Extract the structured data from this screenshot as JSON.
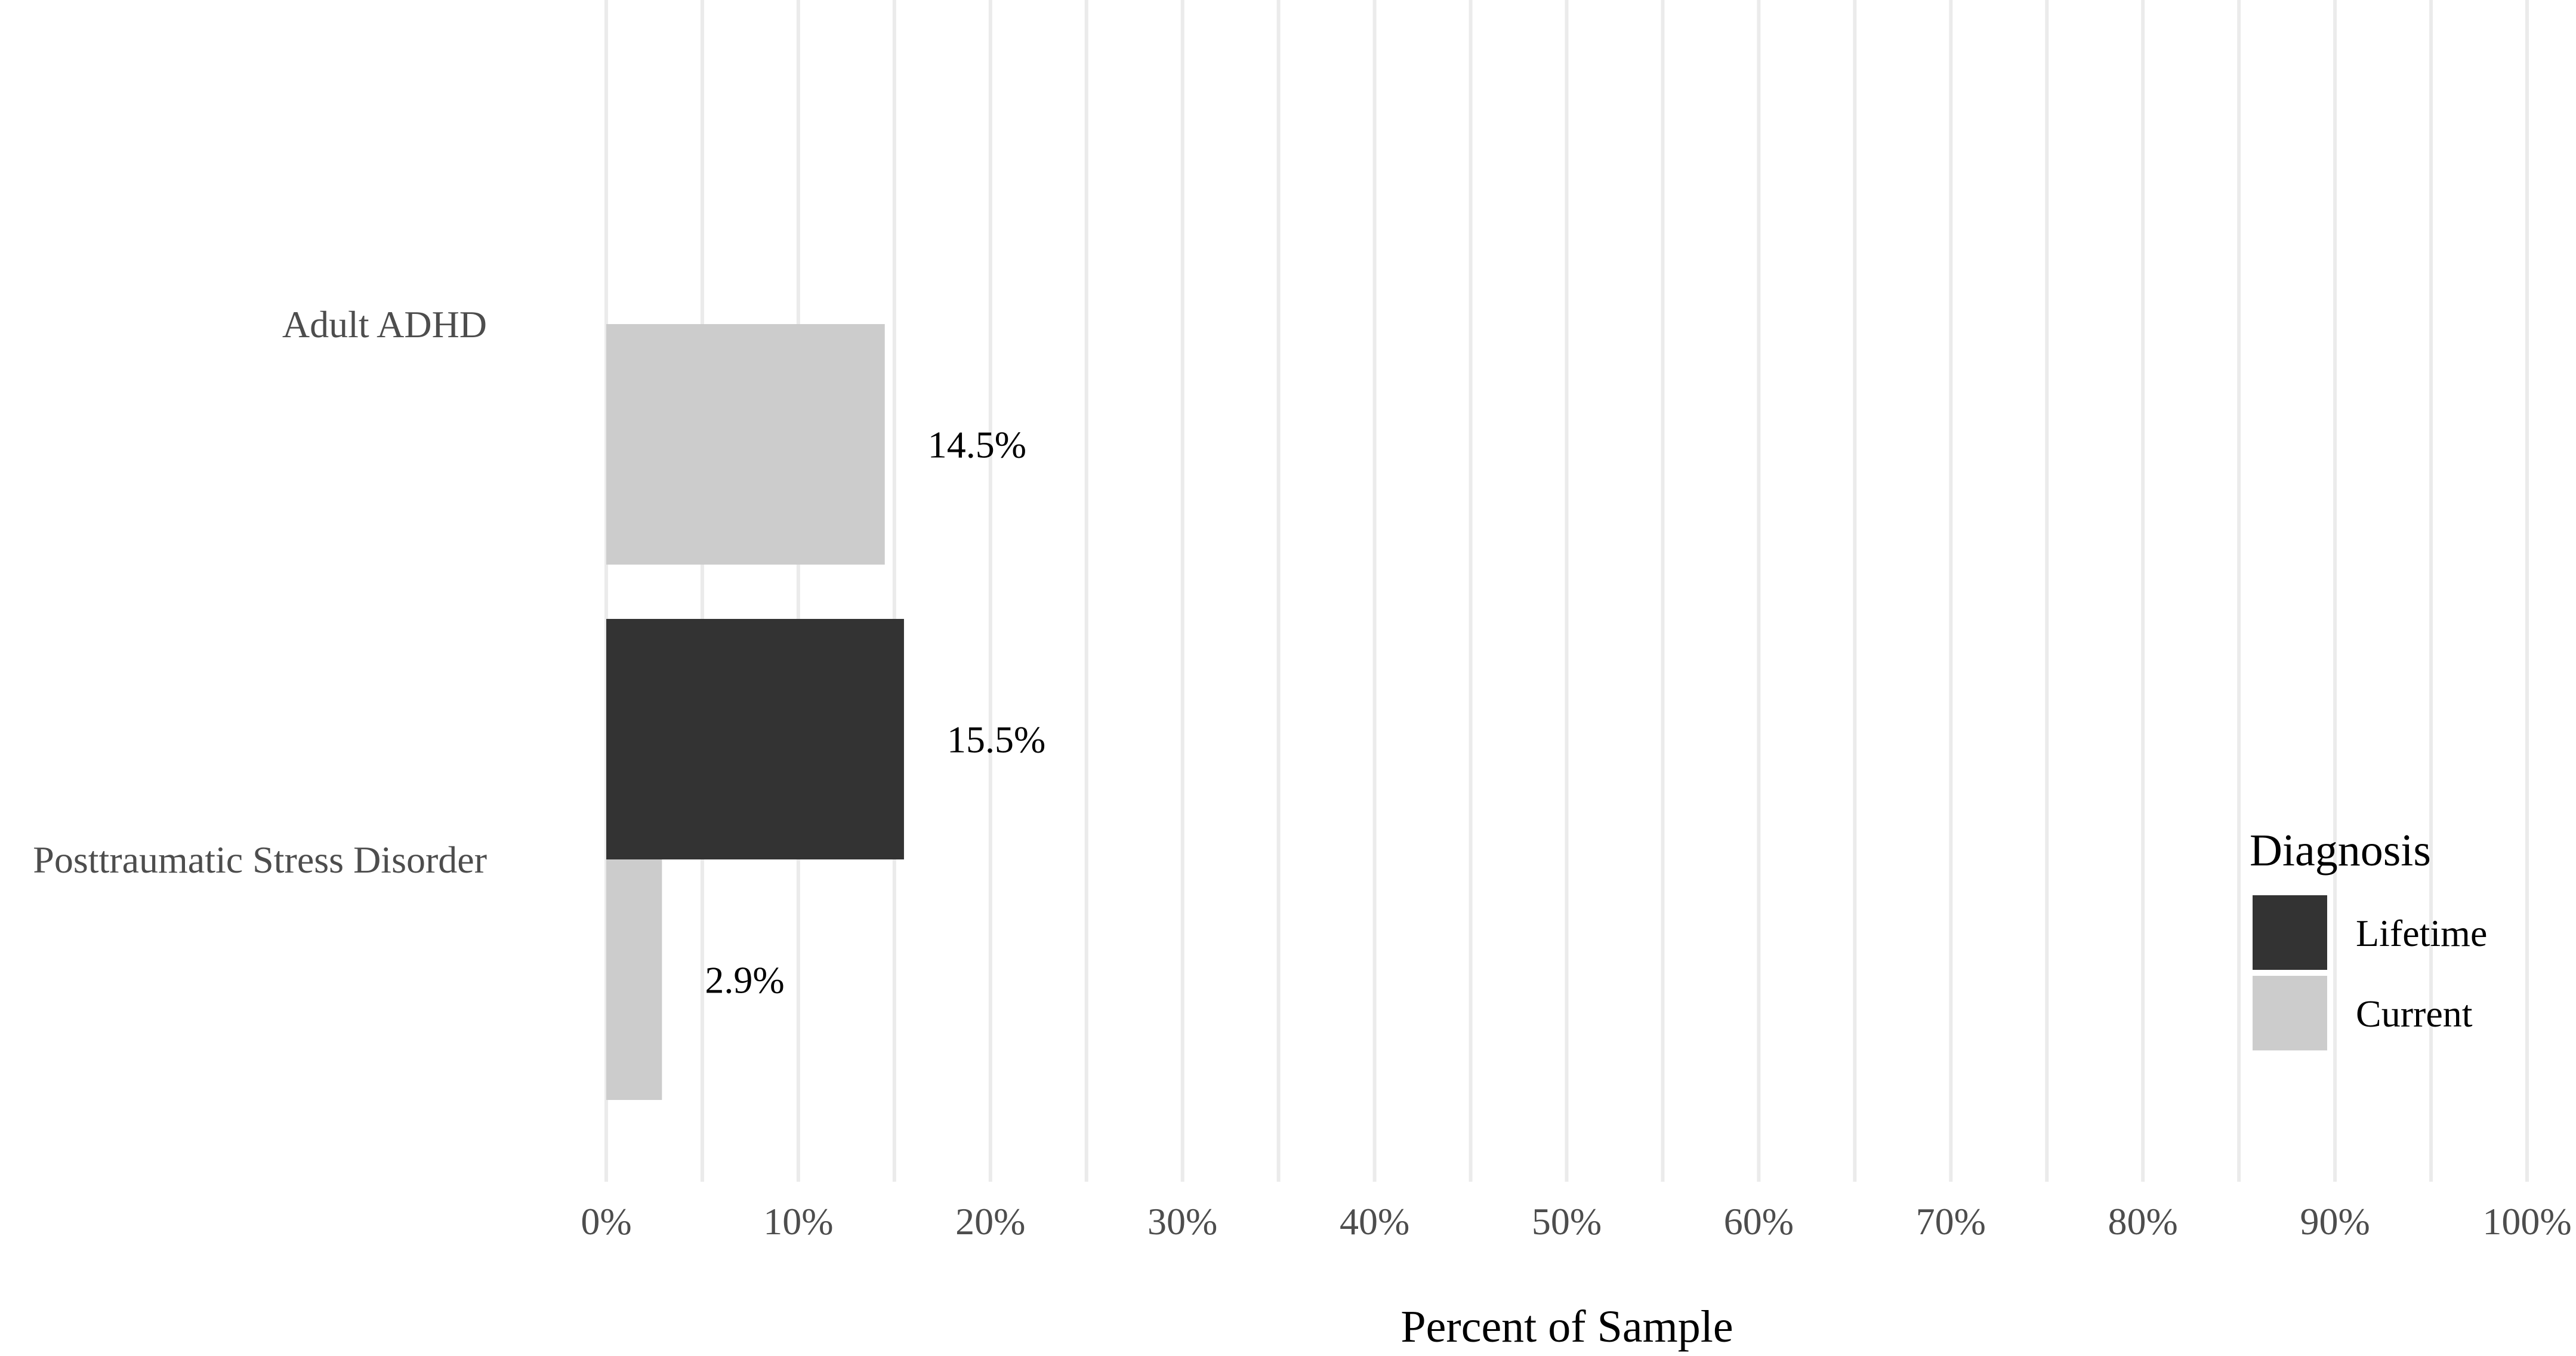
{
  "chart_data": {
    "type": "bar",
    "orientation": "horizontal",
    "title": "",
    "xlabel": "Percent of Sample",
    "ylabel": "",
    "xlim": [
      0,
      100
    ],
    "x_ticks": [
      0,
      10,
      20,
      30,
      40,
      50,
      60,
      70,
      80,
      90,
      100
    ],
    "x_tick_labels": [
      "0%",
      "10%",
      "20%",
      "30%",
      "40%",
      "50%",
      "60%",
      "70%",
      "80%",
      "90%",
      "100%"
    ],
    "grid": "vertical",
    "categories": [
      "Adult ADHD",
      "Posttraumatic Stress Disorder"
    ],
    "series": [
      {
        "name": "Lifetime",
        "color": "#333333",
        "values": [
          null,
          15.5
        ],
        "labels": [
          "",
          "15.5%"
        ]
      },
      {
        "name": "Current",
        "color": "#cccccc",
        "values": [
          14.5,
          2.9
        ],
        "labels": [
          "14.5%",
          "2.9%"
        ]
      }
    ],
    "legend": {
      "title": "Diagnosis",
      "position": "right",
      "entries": [
        "Lifetime",
        "Current"
      ]
    }
  }
}
